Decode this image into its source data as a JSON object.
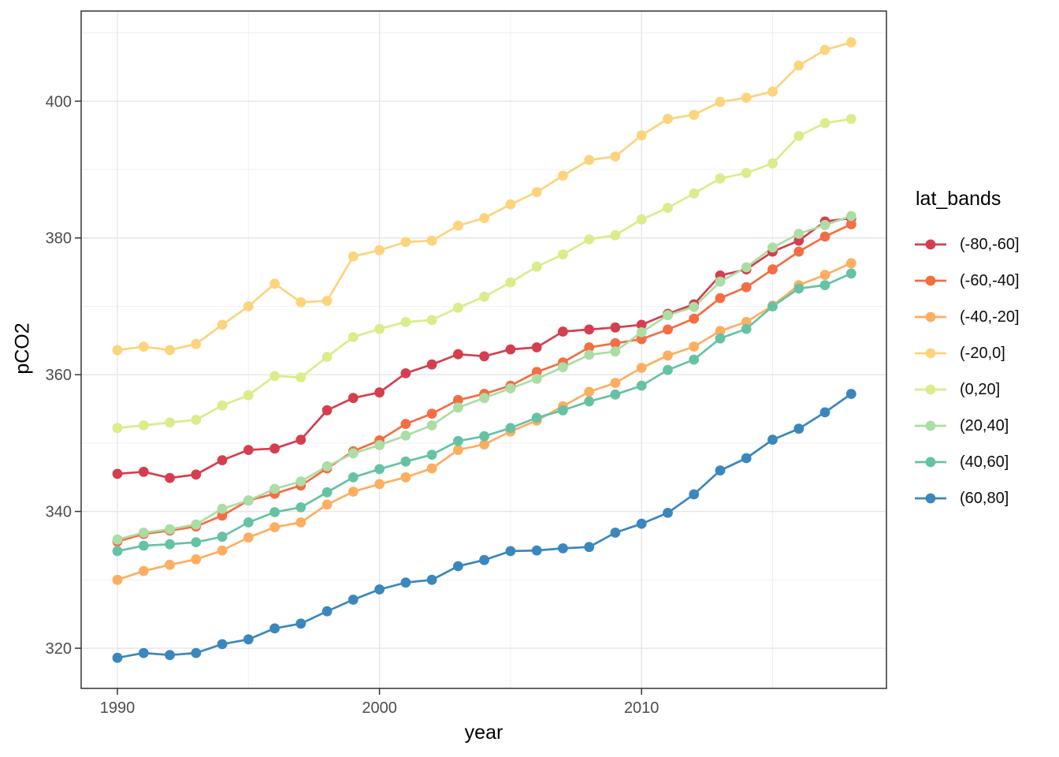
{
  "chart_data": {
    "type": "line",
    "title": "",
    "xlabel": "year",
    "ylabel": "pCO2",
    "legend_title": "lat_bands",
    "legend_position": "right",
    "grid": true,
    "marker": "filled-circle",
    "xlim": [
      1988.6,
      2019.3
    ],
    "ylim": [
      314.2,
      413.2
    ],
    "x_major_ticks": [
      1990,
      2000,
      2010
    ],
    "x_minor_ticks": [
      1995,
      2005,
      2015
    ],
    "y_major_ticks": [
      320,
      340,
      360,
      380,
      400
    ],
    "y_minor_ticks": [
      330,
      350,
      370,
      390,
      410
    ],
    "x": [
      1990,
      1991,
      1992,
      1993,
      1994,
      1995,
      1996,
      1997,
      1998,
      1999,
      2000,
      2001,
      2002,
      2003,
      2004,
      2005,
      2006,
      2007,
      2008,
      2009,
      2010,
      2011,
      2012,
      2013,
      2014,
      2015,
      2016,
      2017,
      2018
    ],
    "series": [
      {
        "name": "(-80,-60]",
        "color": "#d53e4f",
        "values": [
          345.5,
          345.8,
          344.9,
          345.4,
          347.5,
          349.0,
          349.2,
          350.5,
          354.8,
          356.6,
          357.4,
          360.2,
          361.5,
          363.0,
          362.7,
          363.7,
          364.0,
          366.3,
          366.6,
          366.9,
          367.3,
          368.9,
          370.3,
          374.5,
          375.4,
          378.0,
          379.6,
          382.4,
          382.9
        ]
      },
      {
        "name": "(-60,-40]",
        "color": "#f46d43",
        "values": [
          335.6,
          336.7,
          337.2,
          337.8,
          339.4,
          341.6,
          342.6,
          343.8,
          346.3,
          348.8,
          350.4,
          352.8,
          354.3,
          356.3,
          357.2,
          358.4,
          360.4,
          361.8,
          364.0,
          364.6,
          365.2,
          366.6,
          368.2,
          371.2,
          372.8,
          375.4,
          378.0,
          380.2,
          382.0
        ]
      },
      {
        "name": "(-40,-20]",
        "color": "#fdae61",
        "values": [
          330.0,
          331.3,
          332.2,
          333.0,
          334.3,
          336.2,
          337.7,
          338.4,
          341.0,
          342.9,
          344.0,
          345.0,
          346.3,
          349.0,
          349.8,
          351.7,
          353.3,
          355.4,
          357.5,
          358.8,
          361.0,
          362.8,
          364.1,
          366.4,
          367.7,
          370.1,
          373.1,
          374.6,
          376.3
        ]
      },
      {
        "name": "(-20,0]",
        "color": "#fbd47d",
        "values": [
          363.6,
          364.1,
          363.6,
          364.5,
          367.3,
          370.0,
          373.3,
          370.6,
          370.8,
          377.3,
          378.2,
          379.4,
          379.6,
          381.8,
          382.9,
          384.9,
          386.7,
          389.1,
          391.4,
          391.9,
          395.0,
          397.4,
          398.0,
          399.9,
          400.5,
          401.4,
          405.2,
          407.5,
          408.6
        ]
      },
      {
        "name": "(0,20]",
        "color": "#d9ed8b",
        "values": [
          352.2,
          352.6,
          353.0,
          353.4,
          355.5,
          357.0,
          359.8,
          359.6,
          362.6,
          365.5,
          366.7,
          367.7,
          368.0,
          369.8,
          371.4,
          373.5,
          375.8,
          377.6,
          379.8,
          380.4,
          382.7,
          384.4,
          386.5,
          388.7,
          389.5,
          390.9,
          394.9,
          396.8,
          397.4
        ]
      },
      {
        "name": "(20,40]",
        "color": "#abdda4",
        "values": [
          335.9,
          336.9,
          337.4,
          338.1,
          340.4,
          341.6,
          343.3,
          344.4,
          346.6,
          348.5,
          349.7,
          351.1,
          352.6,
          355.2,
          356.6,
          358.0,
          359.4,
          361.1,
          362.9,
          363.4,
          366.2,
          368.7,
          369.9,
          373.6,
          375.7,
          378.6,
          380.6,
          381.9,
          383.2
        ]
      },
      {
        "name": "(40,60]",
        "color": "#66c2a5",
        "values": [
          334.2,
          335.0,
          335.2,
          335.5,
          336.3,
          338.4,
          339.9,
          340.6,
          342.8,
          345.0,
          346.2,
          347.3,
          348.3,
          350.3,
          351.0,
          352.2,
          353.7,
          354.8,
          356.1,
          357.1,
          358.4,
          360.7,
          362.2,
          365.3,
          366.7,
          370.0,
          372.6,
          373.1,
          374.8
        ]
      },
      {
        "name": "(60,80]",
        "color": "#3a87bd",
        "values": [
          318.6,
          319.3,
          319.0,
          319.3,
          320.6,
          321.3,
          322.9,
          323.6,
          325.4,
          327.1,
          328.6,
          329.6,
          330.0,
          332.0,
          332.9,
          334.2,
          334.3,
          334.6,
          334.8,
          336.9,
          338.2,
          339.8,
          342.5,
          346.0,
          347.8,
          350.5,
          352.1,
          354.5,
          357.2
        ]
      }
    ]
  },
  "style": {
    "panel_border_color": "#333333",
    "major_grid_color": "#e6e6e6",
    "minor_grid_color": "#f0f0f0",
    "tick_color": "#333333",
    "tick_label_color": "#4d4d4d",
    "point_radius": 6.4,
    "line_width": 2.7
  }
}
